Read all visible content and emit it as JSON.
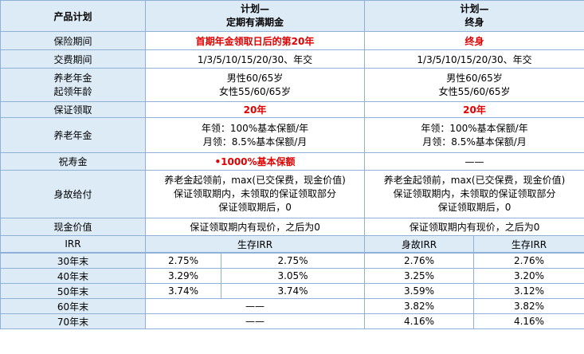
{
  "header": {
    "product_label": "产品计划",
    "plan_a_line1": "计划—",
    "plan_a_line2": "定期有满期金",
    "plan_b_line1": "计划—",
    "plan_b_line2": "终身"
  },
  "rows": {
    "insurance_period": {
      "label": "保险期间",
      "a": "首期年金领取日后的第20年",
      "b": "终身"
    },
    "payment_period": {
      "label": "交费期间",
      "a": "1/3/5/10/15/20/30、年交",
      "b": "1/3/5/10/15/20/30、年交"
    },
    "pension_age": {
      "label_line1": "养老年金",
      "label_line2": "起领年龄",
      "a_line1": "男性60/65岁",
      "a_line2": "女性55/60/65岁",
      "b_line1": "男性60/65岁",
      "b_line2": "女性55/60/65岁"
    },
    "guaranteed_collection": {
      "label": "保证领取",
      "a": "20年",
      "b": "20年"
    },
    "pension": {
      "label": "养老年金",
      "a_line1": "年领：100%基本保额/年",
      "a_line2": "月领：8.5%基本保额/月",
      "b_line1": "年领：100%基本保额/年",
      "b_line2": "月领：8.5%基本保额/月"
    },
    "longevity": {
      "label": "祝寿金",
      "a": "•1000%基本保额",
      "b": "——"
    },
    "death_benefit": {
      "label": "身故给付",
      "a_line1": "养老金起领前，max(已交保费，现金价值)",
      "a_line2": "保证领取期内，未领取的保证领取部分",
      "a_line3": "保证领取期后，0",
      "b_line1": "养老金起领前，max(已交保费，现金价值)",
      "b_line2": "保证领取期内，未领取的保证领取部分",
      "b_line3": "保证领取期后，0"
    },
    "cash_value": {
      "label": "现金价值",
      "a": "保证领取期内有现价，之后为0",
      "b": "保证领取期内有现价，之后为0"
    }
  },
  "irr": {
    "label": "IRR",
    "survival_label": "生存IRR",
    "death_label": "身故IRR",
    "rows": [
      {
        "year": "30年末",
        "a_survival": "2.75%",
        "a_death": "2.75%",
        "b_survival": "2.76%",
        "b_death": "2.76%"
      },
      {
        "year": "40年末",
        "a_survival": "3.29%",
        "a_death": "3.05%",
        "b_survival": "3.25%",
        "b_death": "3.20%"
      },
      {
        "year": "50年末",
        "a_survival": "3.74%",
        "a_death": "3.74%",
        "b_survival": "3.59%",
        "b_death": "3.12%"
      },
      {
        "year": "60年末",
        "a_dash": "——",
        "b_survival": "3.82%",
        "b_death": "3.82%"
      },
      {
        "year": "70年末",
        "a_dash": "——",
        "b_survival": "4.16%",
        "b_death": "4.16%"
      }
    ]
  },
  "colors": {
    "header_fill": "#ddebf7",
    "border": "#8fb0d9",
    "highlight": "#e00000"
  }
}
